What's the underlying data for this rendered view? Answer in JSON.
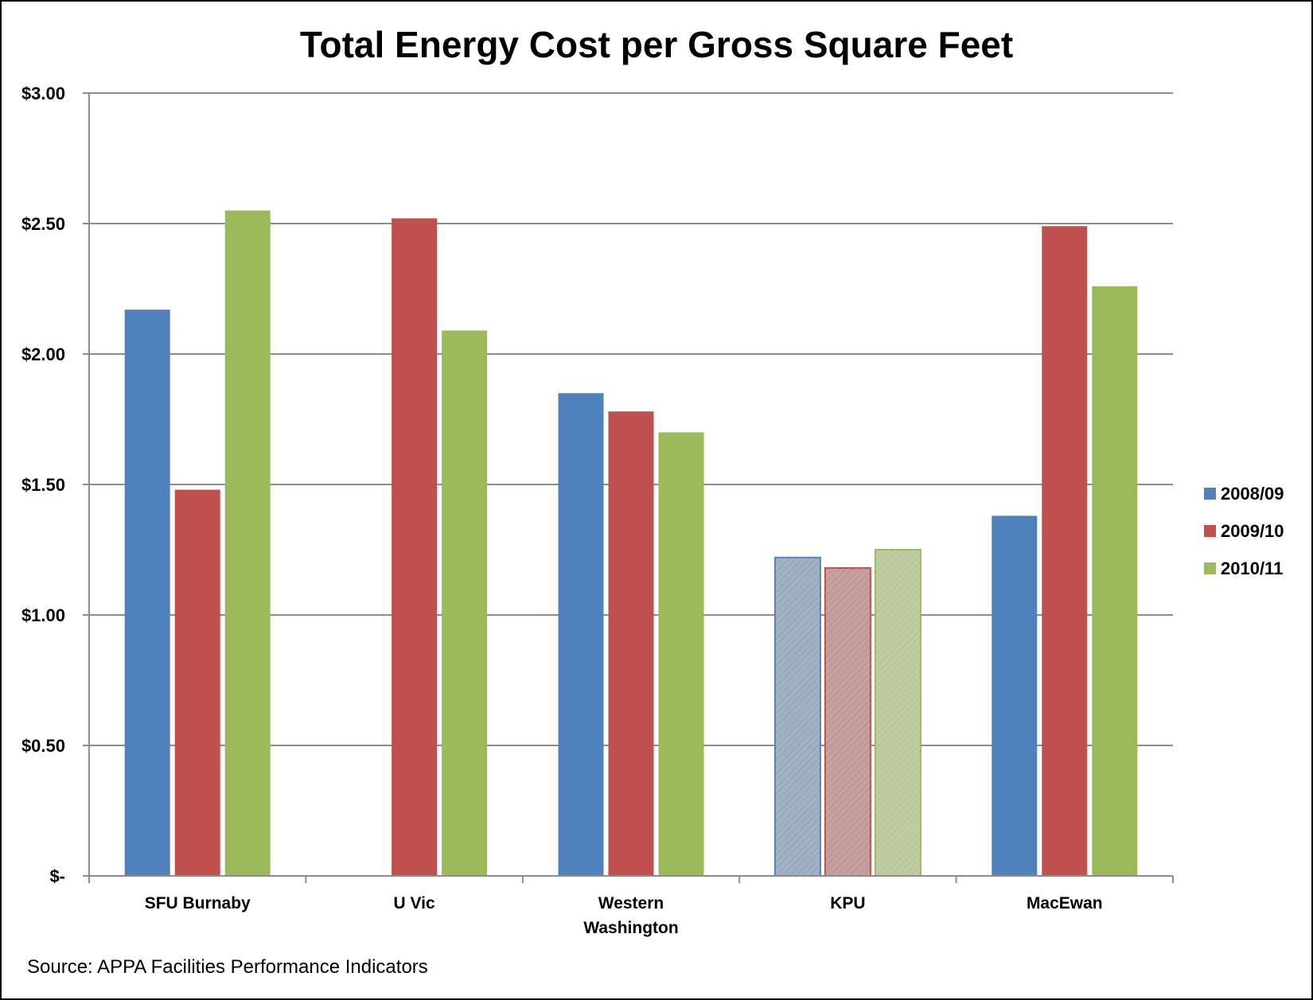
{
  "chart_data": {
    "type": "bar",
    "title": "Total Energy Cost per Gross Square Feet",
    "xlabel": "",
    "ylabel": "",
    "ylim": [
      0,
      3.0
    ],
    "yticks": [
      0,
      0.5,
      1.0,
      1.5,
      2.0,
      2.5,
      3.0
    ],
    "ytick_labels": [
      "$-",
      "$0.50",
      "$1.00",
      "$1.50",
      "$2.00",
      "$2.50",
      "$3.00"
    ],
    "grid": true,
    "legend_position": "right",
    "categories": [
      "SFU Burnaby",
      "U Vic",
      "Western Washington",
      "KPU",
      "MacEwan"
    ],
    "category_lines": [
      [
        "SFU Burnaby"
      ],
      [
        "U Vic"
      ],
      [
        "Western",
        "Washington"
      ],
      [
        "KPU"
      ],
      [
        "MacEwan"
      ]
    ],
    "highlighted_category": "KPU",
    "series": [
      {
        "name": "2008/09",
        "color": "#4F81BD",
        "muted_color": "#9AADBF",
        "values": [
          2.17,
          null,
          1.85,
          1.22,
          1.38
        ]
      },
      {
        "name": "2009/10",
        "color": "#C0504D",
        "muted_color": "#C29A99",
        "values": [
          1.48,
          2.52,
          1.78,
          1.18,
          2.49
        ]
      },
      {
        "name": "2010/11",
        "color": "#9BBB59",
        "muted_color": "#BCC89E",
        "values": [
          2.55,
          2.09,
          1.7,
          1.25,
          2.26
        ]
      }
    ],
    "source": "Source: APPA Facilities Performance Indicators"
  }
}
